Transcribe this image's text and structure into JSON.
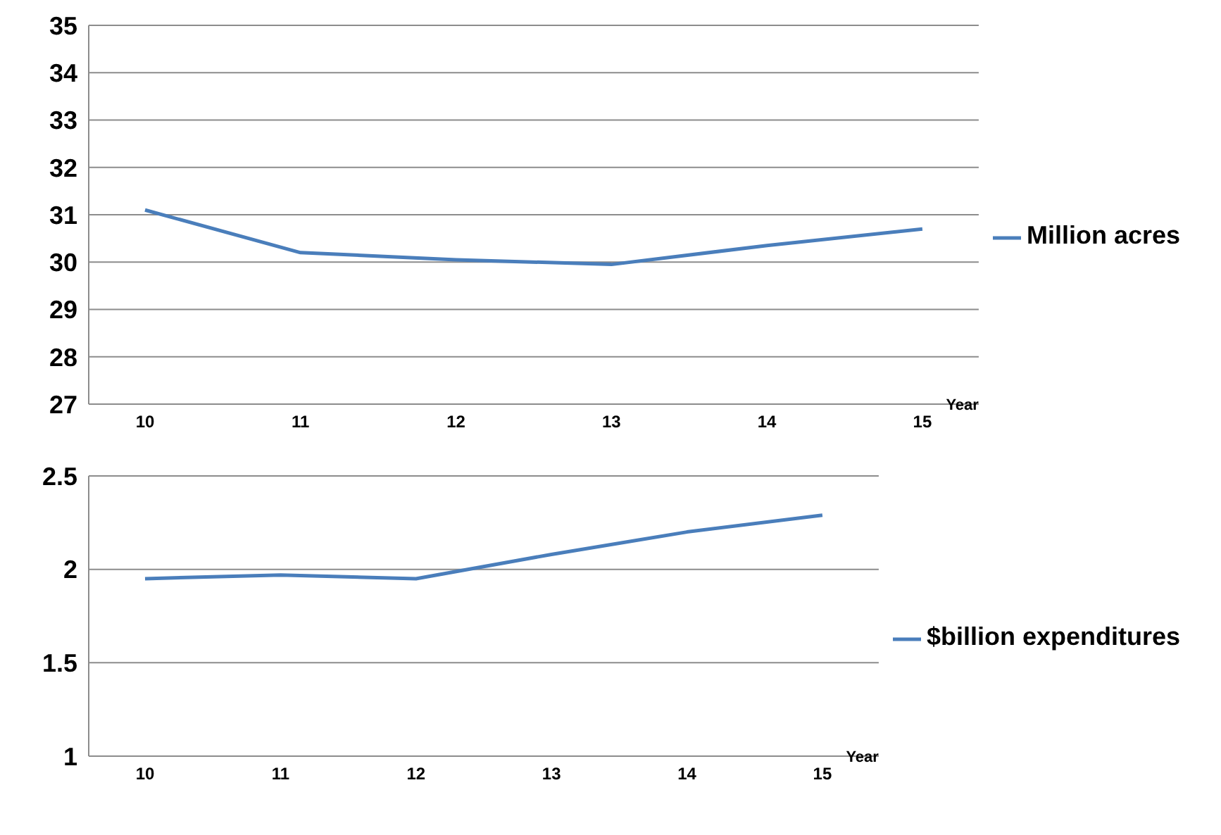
{
  "chart_data": [
    {
      "type": "line",
      "categories": [
        "10",
        "11",
        "12",
        "13",
        "14",
        "15"
      ],
      "xlabel": "Year",
      "series": [
        {
          "name": "Million acres",
          "color": "#4a7ebb",
          "values": [
            31.1,
            30.2,
            30.05,
            29.95,
            30.35,
            30.7
          ]
        }
      ],
      "ylim": [
        27,
        35
      ],
      "yticks": [
        27,
        28,
        29,
        30,
        31,
        32,
        33,
        34,
        35
      ],
      "grid": "y",
      "legend": "right",
      "marker": "none"
    },
    {
      "type": "line",
      "categories": [
        "10",
        "11",
        "12",
        "13",
        "14",
        "15"
      ],
      "xlabel": "Year",
      "series": [
        {
          "name": "$billion expenditures",
          "color": "#4a7ebb",
          "values": [
            1.95,
            1.97,
            1.95,
            2.08,
            2.2,
            2.29
          ]
        }
      ],
      "ylim": [
        1,
        2.5
      ],
      "yticks": [
        1,
        1.5,
        2,
        2.5
      ],
      "grid": "y",
      "legend": "right",
      "marker": "none"
    }
  ]
}
